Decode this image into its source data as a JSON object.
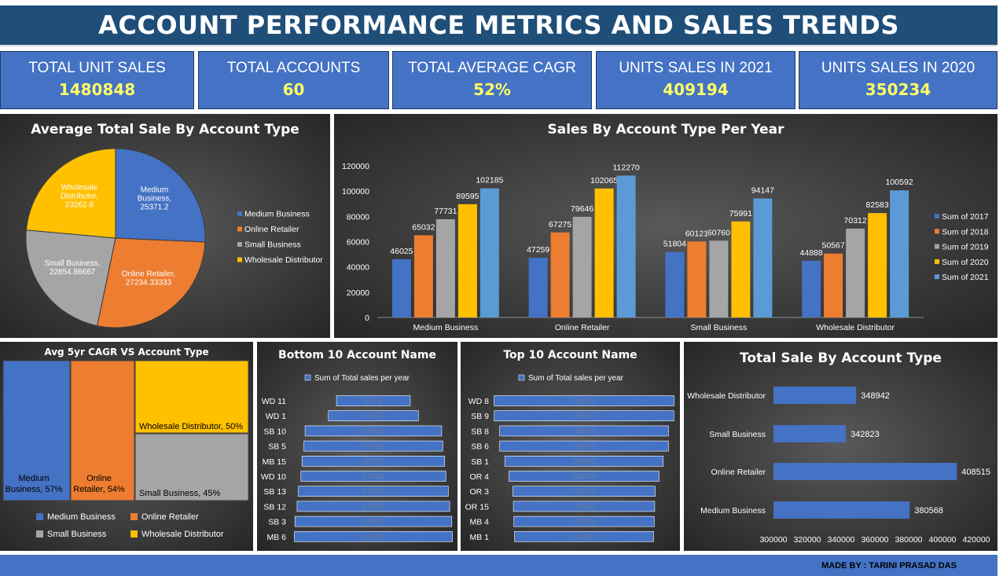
{
  "header": {
    "title": "ACCOUNT PERFORMANCE METRICS AND SALES TRENDS"
  },
  "kpis": [
    {
      "label": "TOTAL UNIT SALES",
      "value": "1480848"
    },
    {
      "label": "TOTAL ACCOUNTS",
      "value": "60"
    },
    {
      "label": "TOTAL AVERAGE CAGR",
      "value": "52%"
    },
    {
      "label": "UNITS SALES IN 2021",
      "value": "409194"
    },
    {
      "label": "UNITS SALES IN 2020",
      "value": "350234"
    }
  ],
  "colors": {
    "blue": "#4472c4",
    "orange": "#ed7d31",
    "gray": "#a5a5a5",
    "gold": "#ffc000",
    "lightblue": "#5b9bd5",
    "kpi_value": "#ffff66"
  },
  "footer": {
    "credit": "MADE BY : TARINI PRASAD DAS"
  },
  "chart_data": [
    {
      "type": "pie",
      "title": "Average Total Sale By Account Type",
      "legend": "right",
      "slices": [
        {
          "name": "Medium Business",
          "label": "Medium Business, 25371.2",
          "value": 25371.2,
          "color": "#4472c4"
        },
        {
          "name": "Online Retailer",
          "label": "Online Retailer, 27234.33333",
          "value": 27234.33333,
          "color": "#ed7d31"
        },
        {
          "name": "Small Business",
          "label": "Small Business, 22854.86667",
          "value": 22854.86667,
          "color": "#a5a5a5"
        },
        {
          "name": "Wholesale Distributor",
          "label": "Wholesale Distributor, 23262.8",
          "value": 23262.8,
          "color": "#ffc000"
        }
      ]
    },
    {
      "type": "bar",
      "title": "Sales By Account Type Per Year",
      "categories": [
        "Medium Business",
        "Online Retailer",
        "Small Business",
        "Wholesale Distributor"
      ],
      "series": [
        {
          "name": "Sum of 2017",
          "values": [
            46025,
            47259,
            51804,
            44888
          ],
          "color": "#4472c4"
        },
        {
          "name": "Sum of 2018",
          "values": [
            65032,
            67275,
            60121,
            50567
          ],
          "color": "#ed7d31"
        },
        {
          "name": "Sum of 2019",
          "values": [
            77731,
            79646,
            60760,
            70312
          ],
          "color": "#a5a5a5"
        },
        {
          "name": "Sum of 2020",
          "values": [
            89595,
            102065,
            75991,
            82583
          ],
          "color": "#ffc000"
        },
        {
          "name": "Sum of 2021",
          "values": [
            102185,
            112270,
            94147,
            100592
          ],
          "color": "#5b9bd5"
        }
      ],
      "ylim": [
        0,
        120000
      ],
      "yticks": [
        0,
        20000,
        40000,
        60000,
        80000,
        100000,
        120000
      ],
      "legend": "right",
      "grid": false
    },
    {
      "type": "treemap",
      "title": "Avg 5yr CAGR VS Account Type",
      "items": [
        {
          "name": "Medium Business",
          "label": "Medium Business, 57%",
          "value": 57,
          "color": "#4472c4"
        },
        {
          "name": "Online Retailer",
          "label": "Online Retailer, 54%",
          "value": 54,
          "color": "#ed7d31"
        },
        {
          "name": "Wholesale Distributor",
          "label": "Wholesale Distributor, 50%",
          "value": 50,
          "color": "#ffc000"
        },
        {
          "name": "Small Business",
          "label": "Small Business, 45%",
          "value": 45,
          "color": "#a5a5a5"
        }
      ],
      "legend": [
        "Medium Business",
        "Online Retailer",
        "Small Business",
        "Wholesale Distributor"
      ]
    },
    {
      "type": "bar",
      "orientation": "horizontal-centered",
      "title": "Bottom 10 Account Name",
      "legend_label": "Sum of Total sales per year",
      "categories": [
        "WD 11",
        "WD 1",
        "SB 10",
        "SB 5",
        "MB 15",
        "WD 10",
        "SB 13",
        "SB 12",
        "SB 3",
        "MB 6"
      ],
      "values": [
        8676,
        10574,
        16060,
        16319,
        16773,
        17038,
        17629,
        17938,
        18447,
        18576
      ]
    },
    {
      "type": "bar",
      "orientation": "horizontal-centered",
      "title": "Top 10 Account Name",
      "legend_label": "Sum of Total sales per year",
      "categories": [
        "WD 8",
        "SB 9",
        "SB 8",
        "SB 6",
        "SB 1",
        "OR 4",
        "OR 3",
        "OR 15",
        "MB 4",
        "MB 1"
      ],
      "values": [
        39413,
        39331,
        36951,
        36951,
        34686,
        32872,
        31127,
        30946,
        30734,
        30450
      ]
    },
    {
      "type": "bar",
      "orientation": "horizontal",
      "title": "Total Sale By Account Type",
      "categories": [
        "Wholesale Distributor",
        "Small Business",
        "Online Retailer",
        "Medium Business"
      ],
      "values": [
        348942,
        342823,
        408515,
        380568
      ],
      "xlim": [
        300000,
        420000
      ],
      "xticks": [
        300000,
        320000,
        340000,
        360000,
        380000,
        400000,
        420000
      ]
    }
  ]
}
